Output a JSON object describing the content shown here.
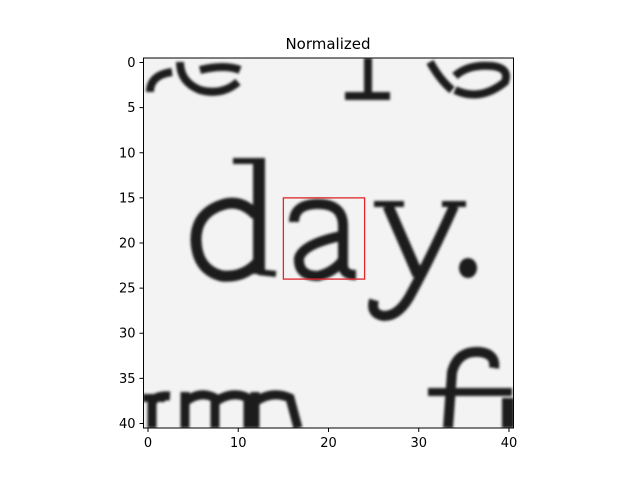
{
  "chart_data": {
    "type": "heatmap",
    "title": "Normalized",
    "xlabel": "",
    "ylabel": "",
    "xlim": [
      -0.5,
      40.5
    ],
    "ylim": [
      40.5,
      -0.5
    ],
    "xticks": [
      0,
      10,
      20,
      30,
      40
    ],
    "yticks": [
      0,
      5,
      10,
      15,
      20,
      25,
      30,
      35,
      40
    ],
    "colormap": "gray",
    "image_size": [
      41,
      41
    ],
    "image_content": "grayscale crop of printed text showing 'day.' with fragments of text above and below",
    "highlight_box": {
      "x0": 15,
      "y0": 15,
      "x1": 24,
      "y1": 24,
      "color": "#e0262a"
    }
  }
}
